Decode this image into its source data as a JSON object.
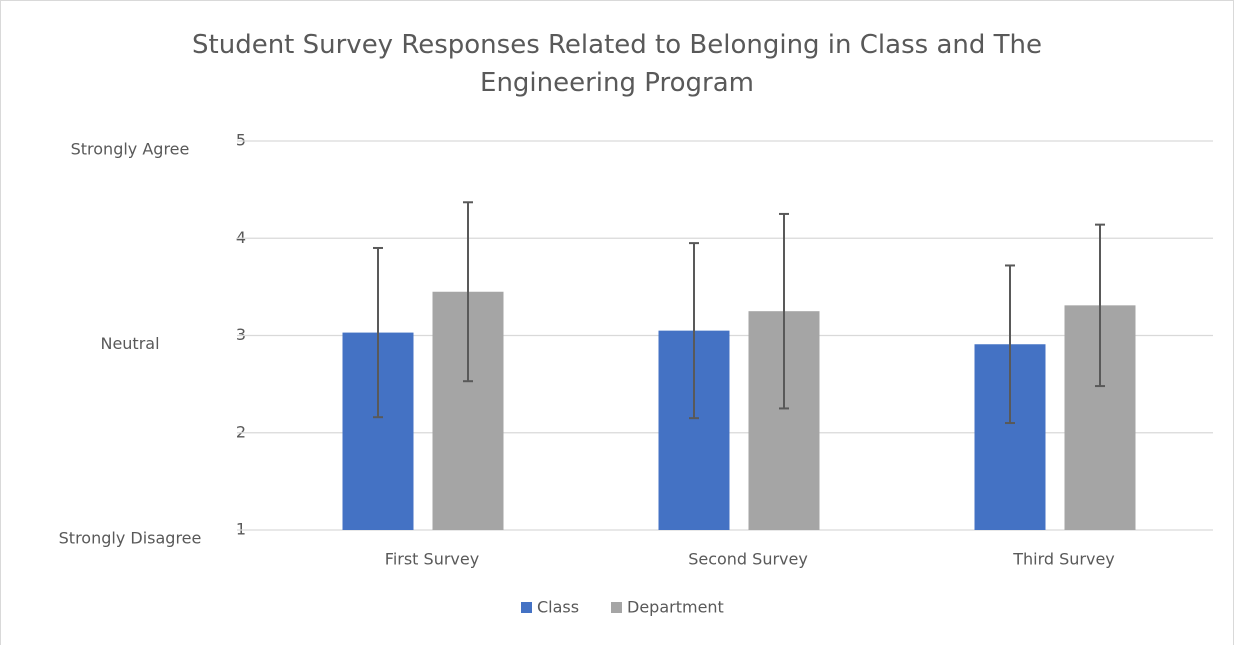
{
  "chart_data": {
    "type": "bar",
    "title": "Student Survey Responses Related to Belonging in Class and The Engineering Program",
    "categories": [
      "First Survey",
      "Second Survey",
      "Third Survey"
    ],
    "series": [
      {
        "name": "Class",
        "color": "#4472c4",
        "values": [
          3.03,
          3.05,
          2.91
        ],
        "errors": [
          0.87,
          0.9,
          0.81
        ]
      },
      {
        "name": "Department",
        "color": "#a5a5a5",
        "values": [
          3.45,
          3.25,
          3.31
        ],
        "errors": [
          0.92,
          1.0,
          0.83
        ]
      }
    ],
    "ylim": [
      1,
      5
    ],
    "yticks": [
      1,
      2,
      3,
      4,
      5
    ],
    "grid": true,
    "annotations": [
      {
        "value": 5,
        "label": "Strongly Agree"
      },
      {
        "value": 3,
        "label": "Neutral"
      },
      {
        "value": 1,
        "label": "Strongly Disagree"
      }
    ],
    "legend": "bottom"
  }
}
